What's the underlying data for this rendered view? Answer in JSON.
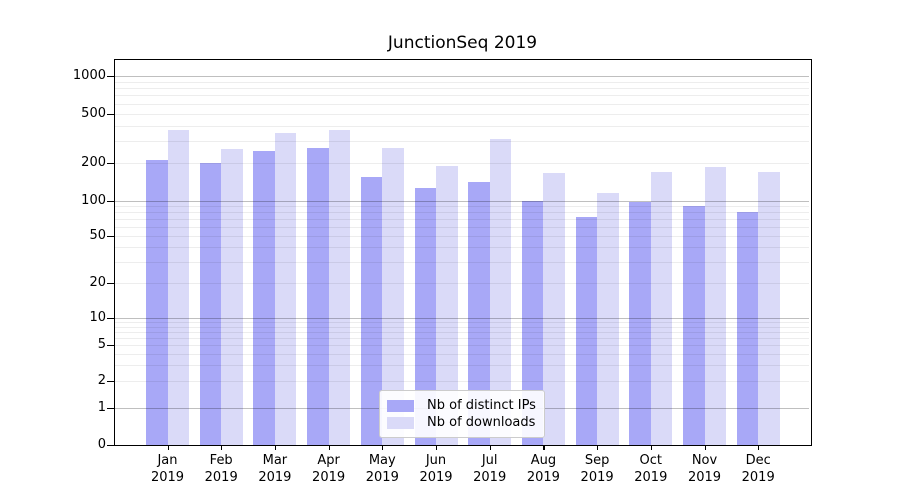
{
  "chart_data": {
    "type": "bar",
    "title": "JunctionSeq 2019",
    "categories": [
      "Jan 2019",
      "Feb 2019",
      "Mar 2019",
      "Apr 2019",
      "May 2019",
      "Jun 2019",
      "Jul 2019",
      "Aug 2019",
      "Sep 2019",
      "Oct 2019",
      "Nov 2019",
      "Dec 2019"
    ],
    "series": [
      {
        "name": "Nb of distinct IPs",
        "color": "#a8a8f7",
        "values": [
          210,
          200,
          250,
          265,
          155,
          125,
          140,
          100,
          72,
          97,
          90,
          80
        ]
      },
      {
        "name": "Nb of downloads",
        "color": "#dadaf8",
        "values": [
          370,
          260,
          350,
          370,
          265,
          190,
          310,
          165,
          115,
          170,
          185,
          168
        ]
      }
    ],
    "xlabel": "",
    "ylabel": "",
    "yscale": "symlog",
    "yticks": [
      0,
      1,
      2,
      5,
      10,
      20,
      50,
      100,
      200,
      500,
      1000
    ],
    "ylim": [
      0,
      1400
    ],
    "grid": "horizontal major and minor",
    "legend_position": "lower center"
  }
}
